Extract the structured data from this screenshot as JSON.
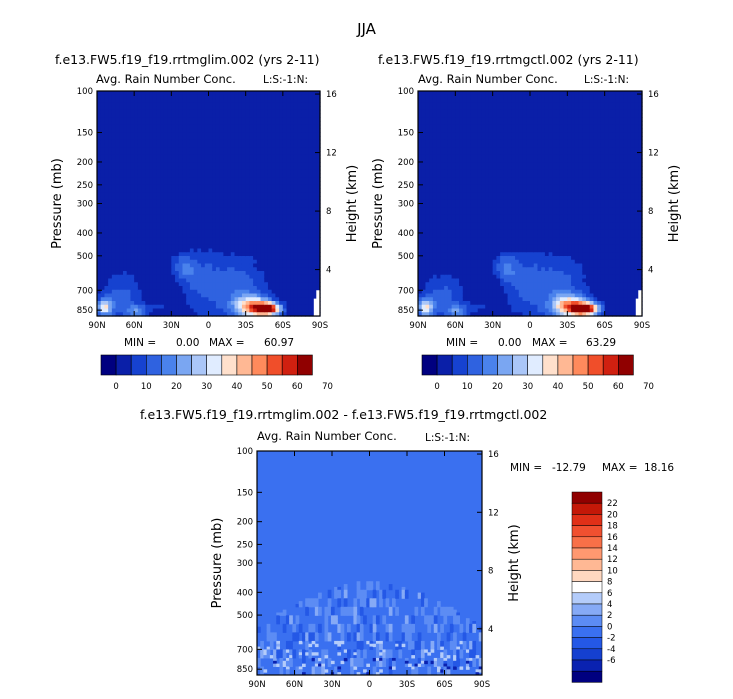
{
  "page": {
    "title": "JJA"
  },
  "panels": [
    {
      "id": "left",
      "run_title": "f.e13.FW5.f19_f19.rrtmglim.002 (yrs 2-11)",
      "subtitle": "Avg. Rain Number Conc.",
      "level_tag": "L:S:-1:N:",
      "ylabel": "Pressure (mb)",
      "y2label": "Height (km)",
      "min_label": "MIN =",
      "min_value": "0.00",
      "max_label": "MAX =",
      "max_value": "60.97"
    },
    {
      "id": "right",
      "run_title": "f.e13.FW5.f19_f19.rrtmgctl.002 (yrs 2-11)",
      "subtitle": "Avg. Rain Number Conc.",
      "level_tag": "L:S:-1:N:",
      "ylabel": "Pressure (mb)",
      "y2label": "Height (km)",
      "min_label": "MIN =",
      "min_value": "0.00",
      "max_label": "MAX =",
      "max_value": "63.29"
    },
    {
      "id": "diff",
      "run_title": "f.e13.FW5.f19_f19.rrtmglim.002 - f.e13.FW5.f19_f19.rrtmgctl.002",
      "subtitle": "Avg. Rain Number Conc.",
      "level_tag": "L:S:-1:N:",
      "ylabel": "Pressure (mb)",
      "y2label": "Height (km)",
      "min_label": "MIN =",
      "min_value": "-12.79",
      "max_label": "MAX =",
      "max_value": "18.16"
    }
  ],
  "colors": {
    "abs_scale": [
      "#000080",
      "#0a1fa8",
      "#1642d0",
      "#2f62e0",
      "#4a82ec",
      "#7aa6f2",
      "#aac6f8",
      "#e0ecff",
      "#ffe0cc",
      "#ffb894",
      "#ff8a5c",
      "#f04e2a",
      "#d02010",
      "#900000"
    ],
    "diff_scale": [
      "#000080",
      "#0a22b0",
      "#1540d0",
      "#2458e6",
      "#3a70f0",
      "#5c8cf4",
      "#86aaf6",
      "#b4ccfa",
      "#ffffff",
      "#ffd8c0",
      "#ffb894",
      "#ff9870",
      "#f87048",
      "#f05030",
      "#e03018",
      "#c41808",
      "#900000"
    ]
  },
  "chart_data": [
    {
      "type": "heatmap",
      "title": "f.e13.FW5.f19_f19.rrtmglim.002 (yrs 2-11)",
      "subtitle": "Avg. Rain Number Conc.",
      "x_ticks": [
        "90N",
        "60N",
        "30N",
        "0",
        "30S",
        "60S",
        "90S"
      ],
      "y_ticks": [
        "100",
        "150",
        "200",
        "250",
        "300",
        "400",
        "500",
        "700",
        "850"
      ],
      "y_ticks_values": [
        100,
        150,
        200,
        250,
        300,
        400,
        500,
        700,
        850
      ],
      "y_scale": "log",
      "y2_ticks": [
        "16",
        "12",
        "8",
        "4"
      ],
      "ylabel": "Pressure (mb)",
      "y2label": "Height (km)",
      "colorbar_ticks": [
        "0",
        "10",
        "20",
        "30",
        "40",
        "50",
        "60",
        "70"
      ],
      "contour_levels": [
        0,
        5,
        10,
        15,
        20,
        25,
        30,
        35,
        40,
        45,
        50,
        55,
        60,
        65,
        70
      ],
      "min": 0.0,
      "max": 60.97,
      "maxima": [
        {
          "lat": -48,
          "p": 840,
          "value": 60.97
        },
        {
          "lat": -35,
          "p": 820,
          "value": 45
        },
        {
          "lat": 84,
          "p": 830,
          "value": 30
        },
        {
          "lat": 58,
          "p": 860,
          "value": 15
        },
        {
          "lat": 20,
          "p": 560,
          "value": 12
        }
      ]
    },
    {
      "type": "heatmap",
      "title": "f.e13.FW5.f19_f19.rrtmgctl.002 (yrs 2-11)",
      "subtitle": "Avg. Rain Number Conc.",
      "x_ticks": [
        "90N",
        "60N",
        "30N",
        "0",
        "30S",
        "60S",
        "90S"
      ],
      "y_ticks": [
        "100",
        "150",
        "200",
        "250",
        "300",
        "400",
        "500",
        "700",
        "850"
      ],
      "y_ticks_values": [
        100,
        150,
        200,
        250,
        300,
        400,
        500,
        700,
        850
      ],
      "y_scale": "log",
      "y2_ticks": [
        "16",
        "12",
        "8",
        "4"
      ],
      "ylabel": "Pressure (mb)",
      "y2label": "Height (km)",
      "colorbar_ticks": [
        "0",
        "10",
        "20",
        "30",
        "40",
        "50",
        "60",
        "70"
      ],
      "contour_levels": [
        0,
        5,
        10,
        15,
        20,
        25,
        30,
        35,
        40,
        45,
        50,
        55,
        60,
        65,
        70
      ],
      "min": 0.0,
      "max": 63.29,
      "maxima": [
        {
          "lat": -45,
          "p": 840,
          "value": 63.29
        },
        {
          "lat": -32,
          "p": 820,
          "value": 45
        },
        {
          "lat": 84,
          "p": 830,
          "value": 32
        },
        {
          "lat": 58,
          "p": 860,
          "value": 15
        },
        {
          "lat": 20,
          "p": 560,
          "value": 12
        }
      ]
    },
    {
      "type": "heatmap",
      "title": "f.e13.FW5.f19_f19.rrtmglim.002 - f.e13.FW5.f19_f19.rrtmgctl.002",
      "subtitle": "Avg. Rain Number Conc.",
      "x_ticks": [
        "90N",
        "60N",
        "30N",
        "0",
        "30S",
        "60S",
        "90S"
      ],
      "y_ticks": [
        "100",
        "150",
        "200",
        "250",
        "300",
        "400",
        "500",
        "700",
        "850"
      ],
      "y_ticks_values": [
        100,
        150,
        200,
        250,
        300,
        400,
        500,
        700,
        850
      ],
      "y_scale": "log",
      "y2_ticks": [
        "16",
        "12",
        "8",
        "4"
      ],
      "ylabel": "Pressure (mb)",
      "y2label": "Height (km)",
      "colorbar_ticks": [
        "22",
        "20",
        "18",
        "16",
        "14",
        "12",
        "10",
        "8",
        "6",
        "4",
        "2",
        "0",
        "-2",
        "-4",
        "-6"
      ],
      "contour_levels": [
        -6,
        -4,
        -2,
        0,
        2,
        4,
        6,
        8,
        10,
        12,
        14,
        16,
        18,
        20,
        22
      ],
      "min": -12.79,
      "max": 18.16
    }
  ]
}
